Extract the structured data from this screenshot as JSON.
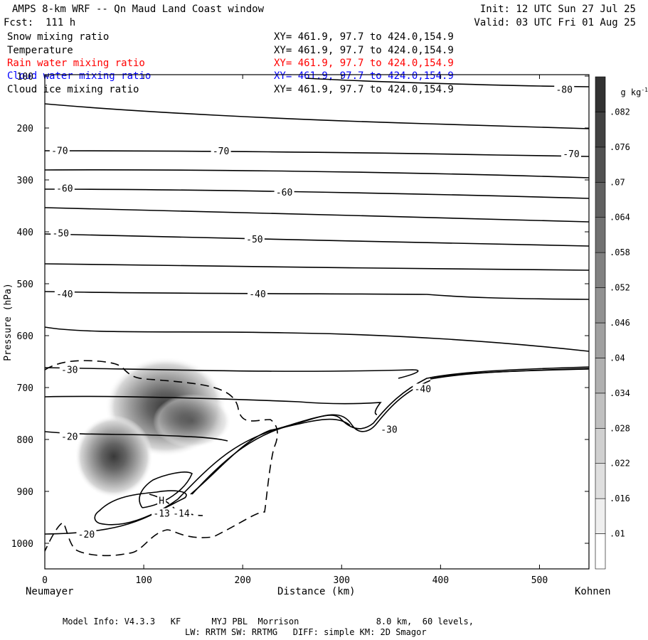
{
  "header": {
    "title": "AMPS 8-km WRF -- Qn Maud Land Coast window",
    "forecast": "Fcst:  111 h",
    "init": "Init: 12 UTC Sun 27 Jul 25",
    "valid": "Valid: 03 UTC Fri 01 Aug 25"
  },
  "fields": [
    {
      "name": "Snow mixing ratio",
      "xy": "XY= 461.9, 97.7 to 424.0,154.9",
      "color": "#000000"
    },
    {
      "name": "Temperature",
      "xy": "XY= 461.9, 97.7 to 424.0,154.9",
      "color": "#000000"
    },
    {
      "name": "Rain water mixing ratio",
      "xy": "XY= 461.9, 97.7 to 424.0,154.9",
      "color": "#ff0000"
    },
    {
      "name": "Cloud water mixing ratio",
      "xy": "XY= 461.9, 97.7 to 424.0,154.9",
      "color": "#0000ff"
    },
    {
      "name": "Cloud ice mixing ratio",
      "xy": "XY= 461.9, 97.7 to 424.0,154.9",
      "color": "#000000"
    }
  ],
  "axes": {
    "left_end": "Neumayer",
    "right_end": "Kohnen",
    "colorbar_unit": "g kg",
    "colorbar_unit_exp": "-1"
  },
  "footer": {
    "line1": "Model Info: V4.3.3   KF      MYJ PBL  Morrison               8.0 km,  60 levels,",
    "line2": "LW: RRTM SW: RRTMG   DIFF: simple KM: 2D Smagor"
  },
  "chart_data": {
    "type": "contour",
    "xlabel": "Distance (km)",
    "ylabel": "Pressure (hPa)",
    "xlim": [
      0,
      550
    ],
    "ylim": [
      1050,
      100
    ],
    "x_ticks": [
      0,
      100,
      200,
      300,
      400,
      500
    ],
    "y_ticks": [
      100,
      200,
      300,
      400,
      500,
      600,
      700,
      800,
      900,
      1000
    ],
    "colorbar": {
      "unit": "g kg-1",
      "ticks": [
        ".01",
        ".016",
        ".022",
        ".028",
        ".034",
        ".04",
        ".046",
        ".052",
        ".058",
        ".064",
        ".07",
        ".076",
        ".082"
      ]
    },
    "temperature_labels": [
      {
        "label": "-80",
        "x": 525,
        "p": 125
      },
      {
        "label": "-70",
        "x": 15,
        "p": 243
      },
      {
        "label": "-70",
        "x": 178,
        "p": 244
      },
      {
        "label": "-70",
        "x": 532,
        "p": 249
      },
      {
        "label": "-60",
        "x": 20,
        "p": 316
      },
      {
        "label": "-60",
        "x": 242,
        "p": 323
      },
      {
        "label": "-50",
        "x": 16,
        "p": 402
      },
      {
        "label": "-50",
        "x": 212,
        "p": 414
      },
      {
        "label": "-40",
        "x": 20,
        "p": 519
      },
      {
        "label": "-40",
        "x": 215,
        "p": 519
      },
      {
        "label": "-40",
        "x": 382,
        "p": 702
      },
      {
        "label": "-30",
        "x": 25,
        "p": 665
      },
      {
        "label": "-30",
        "x": 348,
        "p": 780
      },
      {
        "label": "-20",
        "x": 25,
        "p": 794
      },
      {
        "label": "-20",
        "x": 42,
        "p": 982
      },
      {
        "label": "-13",
        "x": 118,
        "p": 942
      },
      {
        "label": "-14",
        "x": 138,
        "p": 942
      },
      {
        "label": "H",
        "x": 118,
        "p": 917
      }
    ],
    "snow_maxima": [
      {
        "x": 120,
        "p": 735
      },
      {
        "x": 70,
        "p": 830
      }
    ]
  }
}
